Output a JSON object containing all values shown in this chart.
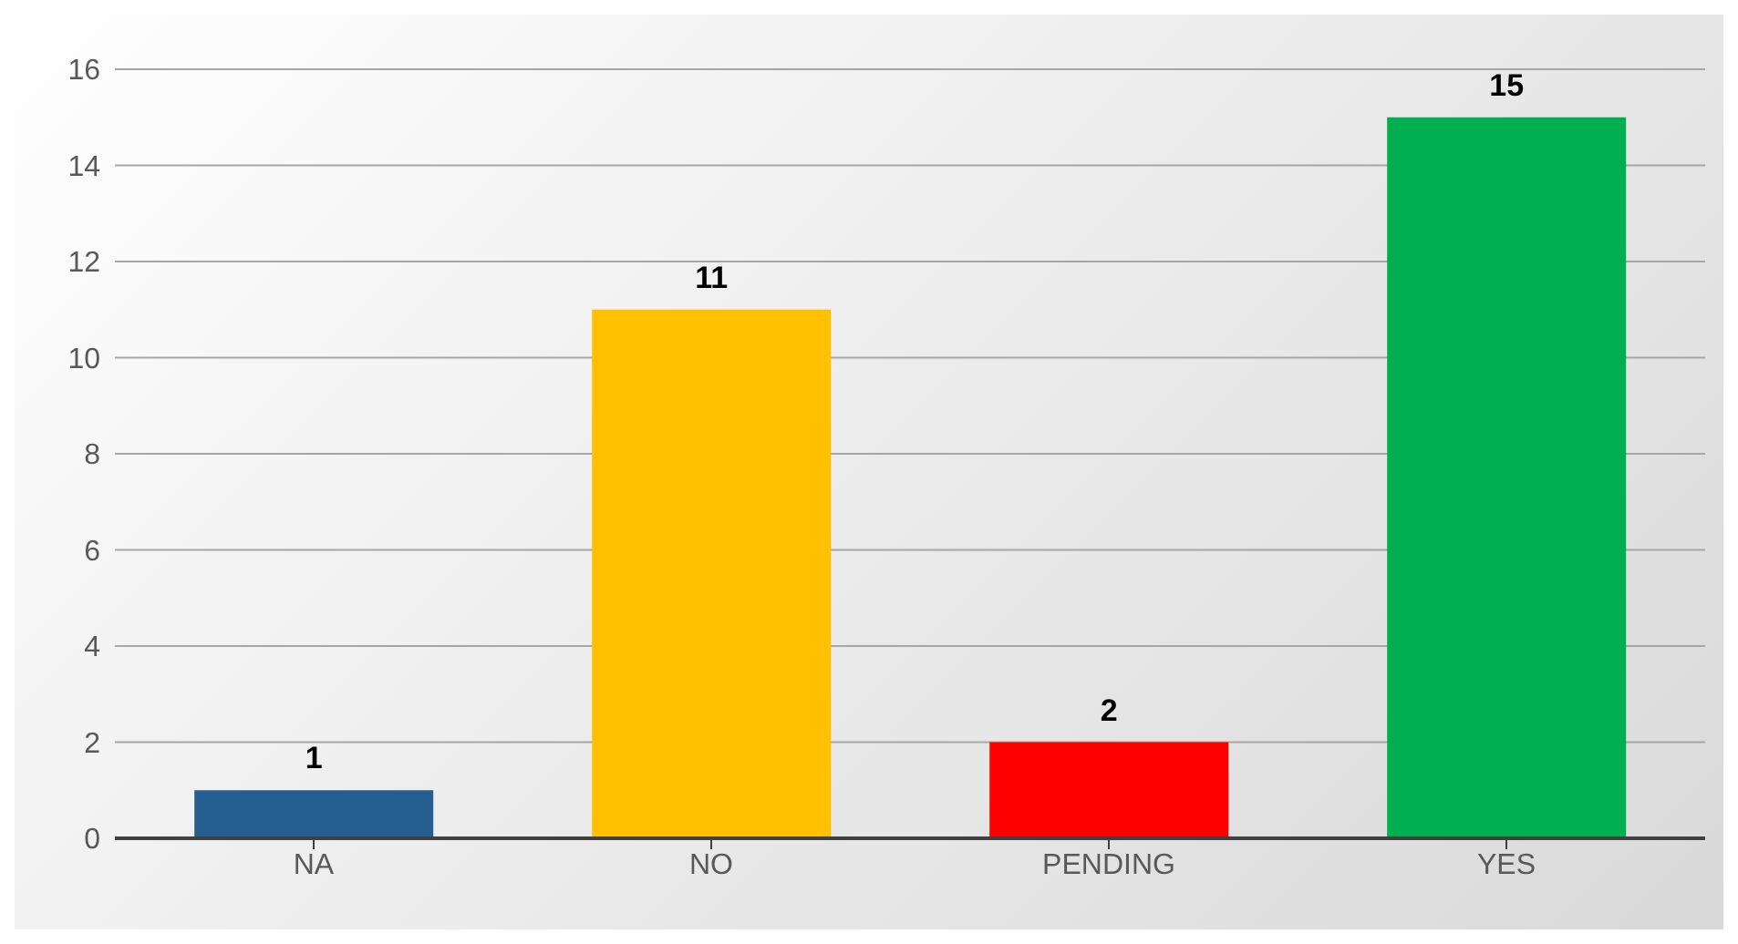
{
  "chart_data": {
    "type": "bar",
    "categories": [
      "NA",
      "NO",
      "PENDING",
      "YES"
    ],
    "values": [
      1,
      11,
      2,
      15
    ],
    "colors": [
      "#255e91",
      "#ffc000",
      "#ff0000",
      "#00b050"
    ],
    "ylim": [
      0,
      16
    ],
    "yticks": [
      0,
      2,
      4,
      6,
      8,
      10,
      12,
      14,
      16
    ],
    "grid": "y",
    "data_labels": true
  }
}
